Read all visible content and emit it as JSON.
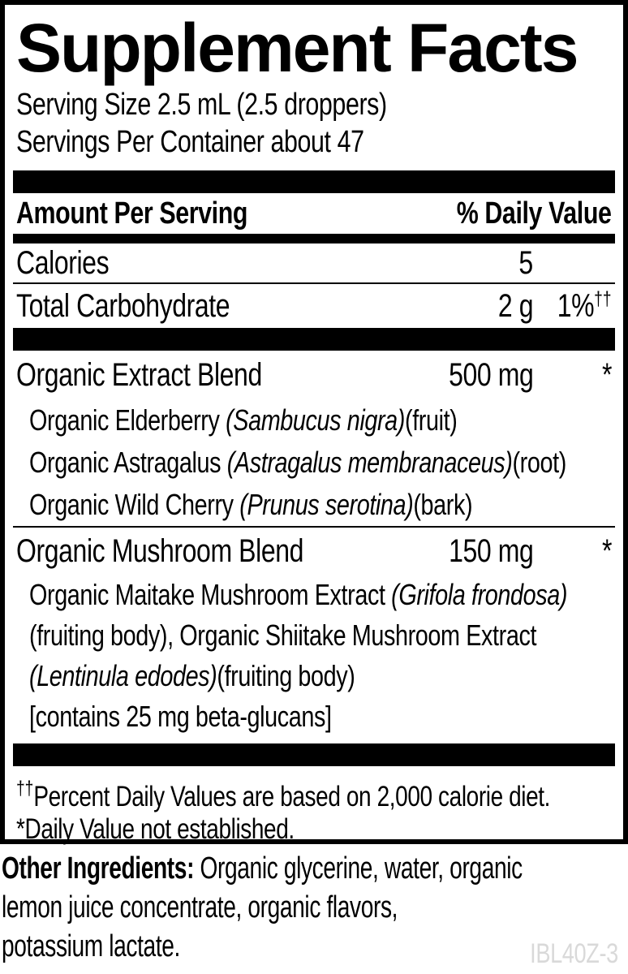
{
  "colors": {
    "ink": "#000000",
    "paper": "#ffffff",
    "code_gray": "#d9d9d9"
  },
  "label": {
    "title": "Supplement Facts",
    "serving_size": "Serving Size 2.5 mL (2.5 droppers)",
    "servings_per_container": "Servings Per Container about 47",
    "columns": {
      "amount_header": "Amount Per Serving",
      "dv_header": "% Daily Value"
    },
    "nutrients": [
      {
        "name": "Calories",
        "amount": "5",
        "dv": "",
        "dv_sup": ""
      },
      {
        "name": "Total Carbohydrate",
        "amount": "2 g",
        "dv": "1%",
        "dv_sup": "††"
      }
    ],
    "blends": [
      {
        "name": "Organic Extract Blend",
        "amount": "500 mg",
        "dv": "*",
        "ingredient_lines": [
          [
            {
              "t": "Organic Elderberry ",
              "i": false
            },
            {
              "t": "(Sambucus nigra)",
              "i": true
            },
            {
              "t": "(fruit)",
              "i": false
            }
          ],
          [
            {
              "t": "Organic Astragalus ",
              "i": false
            },
            {
              "t": "(Astragalus membranaceus)",
              "i": true
            },
            {
              "t": "(root)",
              "i": false
            }
          ],
          [
            {
              "t": "Organic Wild Cherry ",
              "i": false
            },
            {
              "t": "(Prunus serotina)",
              "i": true
            },
            {
              "t": "(bark)",
              "i": false
            }
          ]
        ]
      },
      {
        "name": "Organic Mushroom Blend",
        "amount": "150 mg",
        "dv": "*",
        "ingredient_lines": [
          [
            {
              "t": "Organic Maitake Mushroom Extract ",
              "i": false
            },
            {
              "t": "(Grifola frondosa)",
              "i": true
            }
          ],
          [
            {
              "t": "(fruiting body), Organic Shiitake Mushroom Extract",
              "i": false
            }
          ],
          [
            {
              "t": "(Lentinula edodes)",
              "i": true
            },
            {
              "t": "(fruiting body)",
              "i": false
            }
          ],
          [
            {
              "t": "[contains 25 mg beta-glucans]",
              "i": false
            }
          ]
        ]
      }
    ],
    "footnotes": [
      {
        "sup": "††",
        "text": "Percent Daily Values are based on 2,000 calorie diet."
      },
      {
        "sup": "",
        "text": "*Daily Value not established."
      }
    ]
  },
  "other_ingredients": {
    "label": "Other Ingredients:",
    "line1_rest": " Organic glycerine, water, organic",
    "line2": "lemon juice concentrate, organic flavors,",
    "line3": "potassium lactate."
  },
  "code": "IBL40Z-3"
}
